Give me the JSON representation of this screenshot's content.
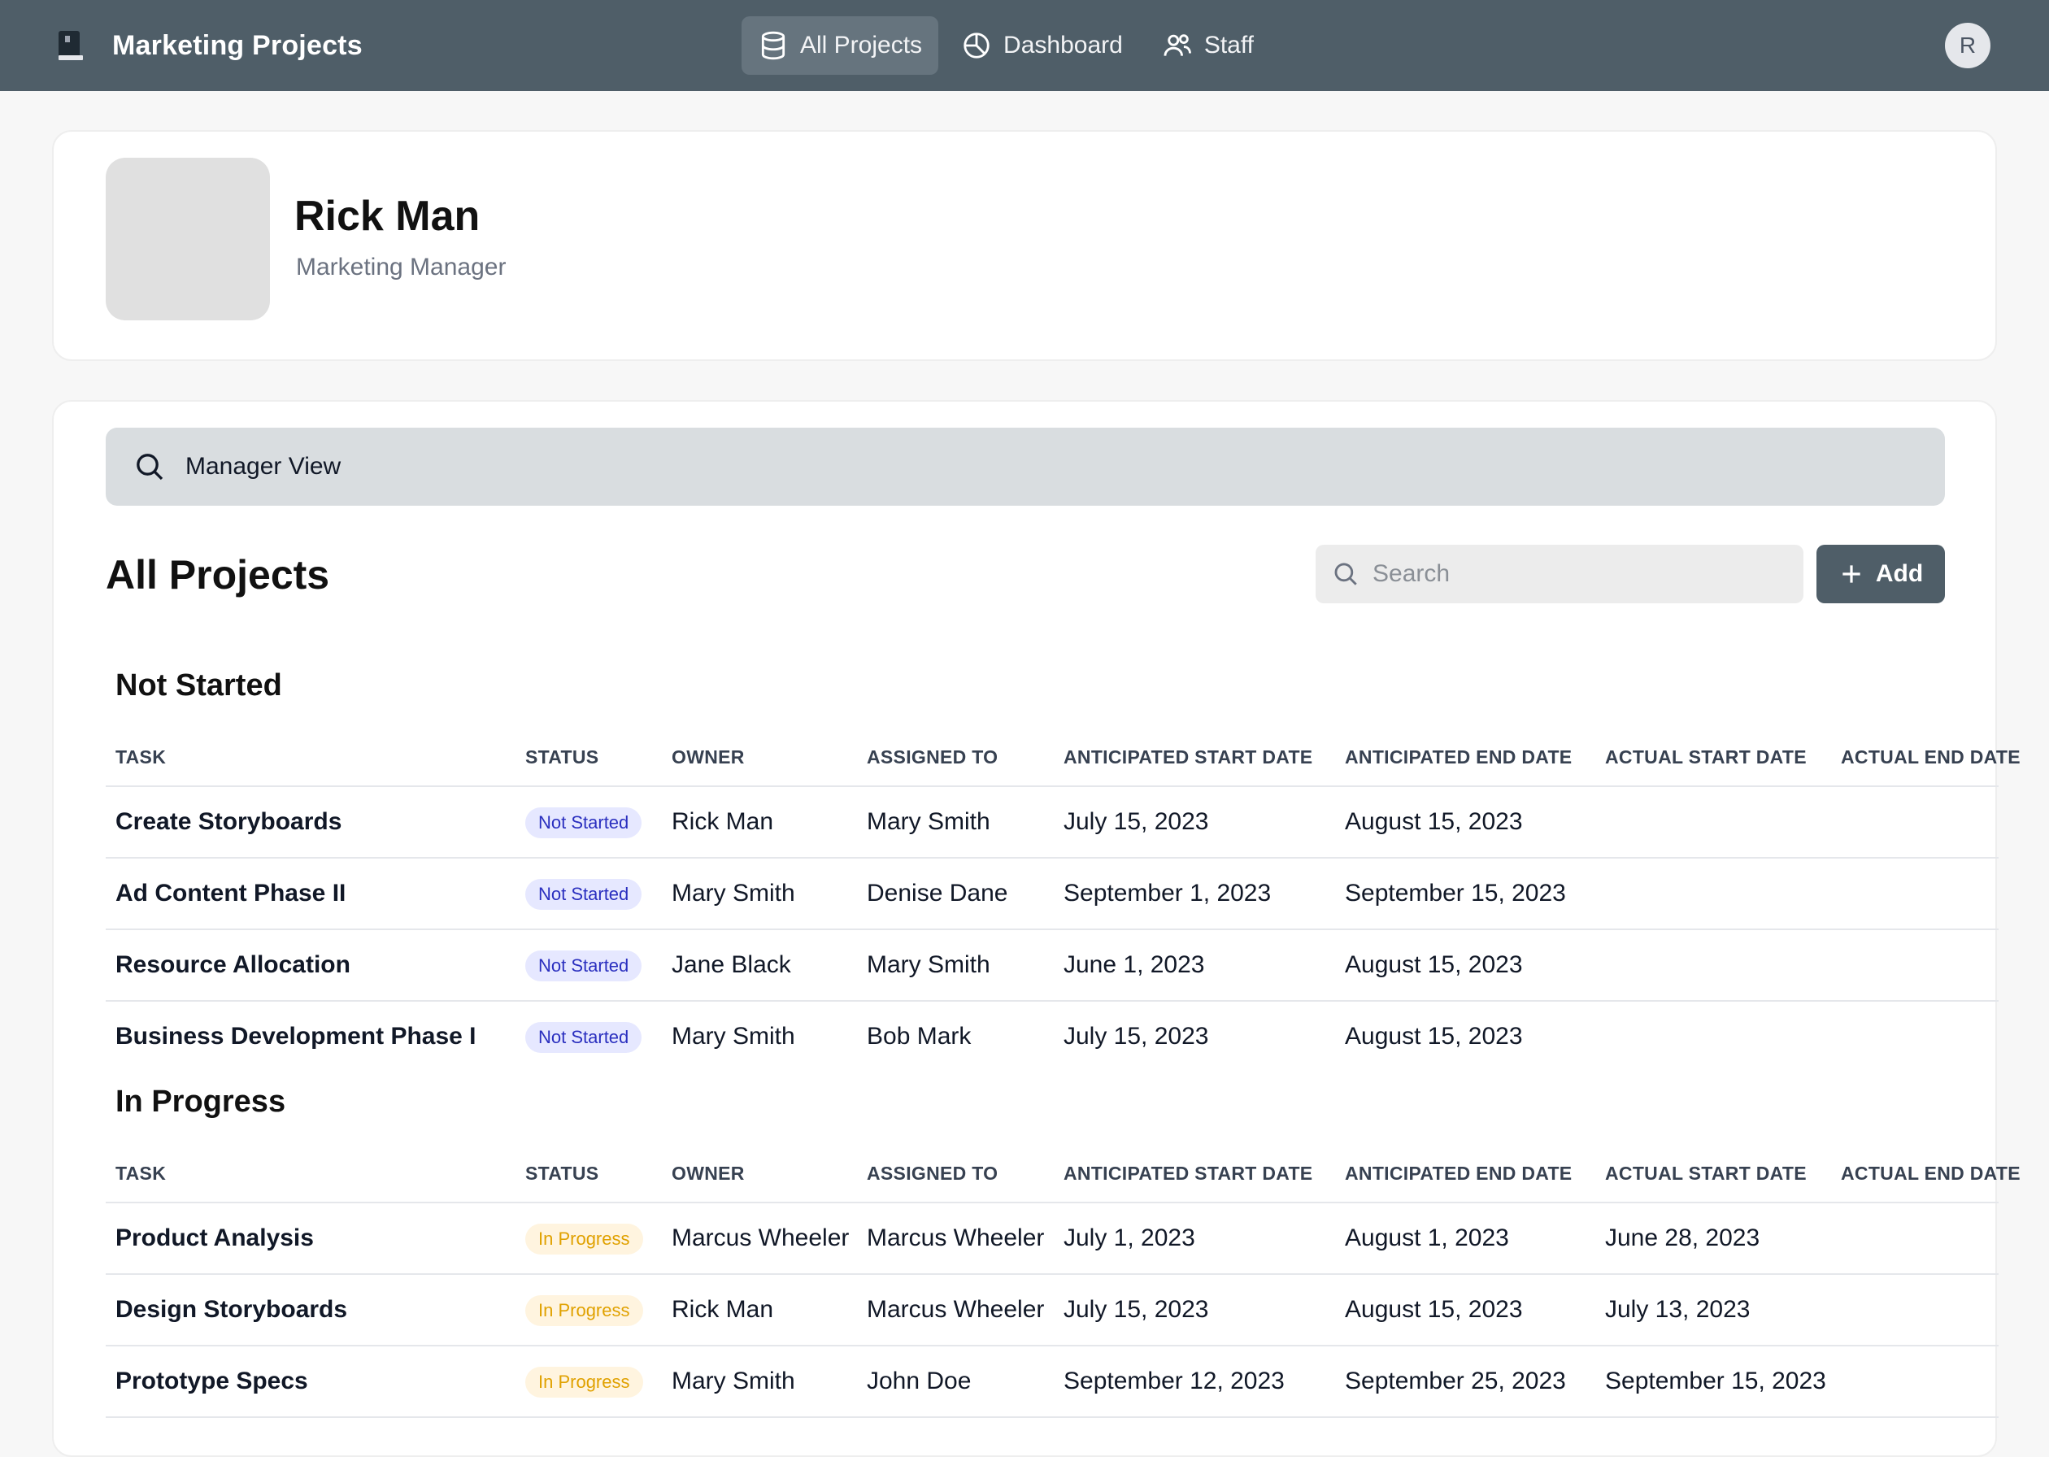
{
  "app": {
    "title": "Marketing Projects",
    "avatar_initial": "R"
  },
  "nav": [
    {
      "label": "All Projects",
      "icon": "database-icon",
      "active": true
    },
    {
      "label": "Dashboard",
      "icon": "pie-chart-icon",
      "active": false
    },
    {
      "label": "Staff",
      "icon": "users-icon",
      "active": false
    }
  ],
  "profile": {
    "name": "Rick Man",
    "role": "Marketing Manager"
  },
  "manager_view": {
    "label": "Manager View"
  },
  "projects": {
    "title": "All Projects",
    "search_placeholder": "Search",
    "add_label": "Add"
  },
  "columns": [
    "TASK",
    "STATUS",
    "OWNER",
    "ASSIGNED TO",
    "ANTICIPATED START DATE",
    "ANTICIPATED END DATE",
    "ACTUAL START DATE",
    "ACTUAL END DATE"
  ],
  "groups": [
    {
      "title": "Not Started",
      "rows": [
        {
          "task": "Create Storyboards",
          "status": "Not Started",
          "owner": "Rick Man",
          "assigned": "Mary Smith",
          "ant_start": "July 15, 2023",
          "ant_end": "August 15, 2023",
          "act_start": "",
          "act_end": ""
        },
        {
          "task": "Ad Content Phase II",
          "status": "Not Started",
          "owner": "Mary Smith",
          "assigned": "Denise Dane",
          "ant_start": "September 1, 2023",
          "ant_end": "September 15, 2023",
          "act_start": "",
          "act_end": ""
        },
        {
          "task": "Resource Allocation",
          "status": "Not Started",
          "owner": "Jane Black",
          "assigned": "Mary Smith",
          "ant_start": "June 1, 2023",
          "ant_end": "August 15, 2023",
          "act_start": "",
          "act_end": ""
        },
        {
          "task": "Business Development Phase I",
          "status": "Not Started",
          "owner": "Mary Smith",
          "assigned": "Bob Mark",
          "ant_start": "July 15, 2023",
          "ant_end": "August 15, 2023",
          "act_start": "",
          "act_end": ""
        }
      ]
    },
    {
      "title": "In Progress",
      "rows": [
        {
          "task": "Product Analysis",
          "status": "In Progress",
          "owner": "Marcus Wheeler",
          "assigned": "Marcus Wheeler",
          "ant_start": "July 1, 2023",
          "ant_end": "August 1, 2023",
          "act_start": "June 28, 2023",
          "act_end": ""
        },
        {
          "task": "Design Storyboards",
          "status": "In Progress",
          "owner": "Rick Man",
          "assigned": "Marcus Wheeler",
          "ant_start": "July 15, 2023",
          "ant_end": "August 15, 2023",
          "act_start": "July 13, 2023",
          "act_end": ""
        },
        {
          "task": "Prototype Specs",
          "status": "In Progress",
          "owner": "Mary Smith",
          "assigned": "John Doe",
          "ant_start": "September 12, 2023",
          "ant_end": "September 25, 2023",
          "act_start": "September 15, 2023",
          "act_end": ""
        }
      ]
    }
  ]
}
